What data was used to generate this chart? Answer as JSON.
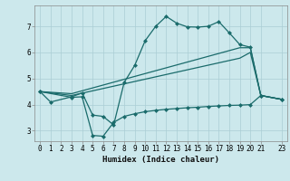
{
  "xlabel": "Humidex (Indice chaleur)",
  "bg_color": "#cce8ec",
  "grid_color": "#aacdd4",
  "line_color": "#1a6b6b",
  "xlim": [
    -0.5,
    23.5
  ],
  "ylim": [
    2.6,
    7.8
  ],
  "yticks": [
    3,
    4,
    5,
    6,
    7
  ],
  "xticks": [
    0,
    1,
    2,
    3,
    4,
    5,
    6,
    7,
    8,
    9,
    10,
    11,
    12,
    13,
    14,
    15,
    16,
    17,
    18,
    19,
    20,
    21,
    23
  ],
  "line1_x": [
    0,
    1,
    3,
    4,
    5,
    6,
    7,
    8,
    9,
    10,
    11,
    12,
    13,
    14,
    15,
    16,
    17,
    18,
    19,
    20,
    21,
    23
  ],
  "line1_y": [
    4.5,
    4.1,
    4.3,
    4.45,
    3.6,
    3.55,
    3.22,
    4.85,
    5.5,
    6.45,
    7.0,
    7.38,
    7.12,
    6.98,
    6.97,
    7.0,
    7.18,
    6.75,
    6.3,
    6.2,
    4.35,
    4.2
  ],
  "line2_x": [
    0,
    3,
    4,
    5,
    6,
    7,
    8,
    9,
    10,
    11,
    12,
    13,
    14,
    15,
    16,
    17,
    18,
    19,
    20,
    21,
    23
  ],
  "line2_y": [
    4.5,
    4.28,
    4.3,
    2.82,
    2.79,
    3.32,
    3.55,
    3.65,
    3.73,
    3.78,
    3.82,
    3.85,
    3.88,
    3.9,
    3.93,
    3.95,
    3.97,
    3.98,
    4.0,
    4.35,
    4.2
  ],
  "line3_x": [
    0,
    3,
    19,
    20,
    21,
    23
  ],
  "line3_y": [
    4.5,
    4.42,
    6.18,
    6.18,
    4.35,
    4.2
  ],
  "line4_x": [
    0,
    3,
    19,
    20,
    21,
    23
  ],
  "line4_y": [
    4.5,
    4.35,
    5.78,
    6.0,
    4.35,
    4.2
  ]
}
